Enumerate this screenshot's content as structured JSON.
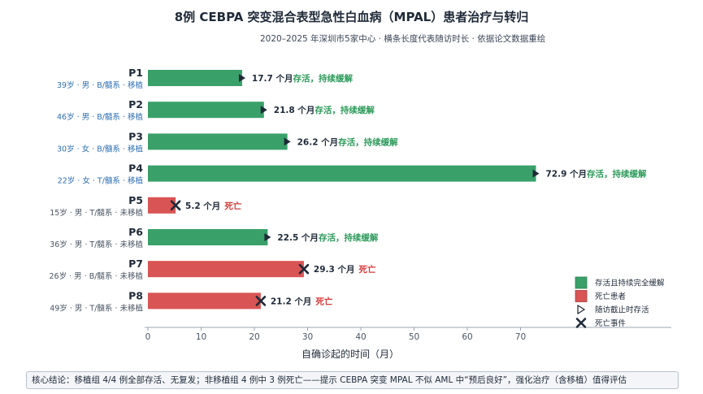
{
  "title": "8例 CEBPA 突变混合表型急性白血病（MPAL）患者治疗与转归",
  "subtitle": "2020–2025 年深圳市5家中心 · 横条长度代表随访时长 · 依据论文数据重绘",
  "footer": "核心结论：移植组 4/4 例全部存活、无复发；非移植组 4 例中 3 例死亡——提示 CEBPA 突变 MPAL 不似 AML 中“预后良好”，强化治疗（含移植）值得评估",
  "colors": {
    "alive": "#3aa06a",
    "dead": "#d95454",
    "alive_text": "#2f9b5c",
    "dead_text": "#d63b3b",
    "sub_blue": "#2f6fb3",
    "sub_gray": "#4a5563",
    "marker": "#1f2a38"
  },
  "chart_data": {
    "type": "bar",
    "orientation": "horizontal",
    "xlabel": "自确诊起的时间（月）",
    "xlim": [
      0,
      78
    ],
    "xticks": [
      0,
      10,
      20,
      30,
      40,
      50,
      60,
      70
    ],
    "unit": "个月",
    "patients": [
      {
        "id": "P1",
        "info": "39岁 · 男 · B/髓系 · 移植",
        "months": 17.7,
        "value_label": "17.7 个月",
        "status": "alive",
        "status_text": "存活，持续缓解"
      },
      {
        "id": "P2",
        "info": "46岁 · 男 · B/髓系 · 移植",
        "months": 21.8,
        "value_label": "21.8 个月",
        "status": "alive",
        "status_text": "存活，持续缓解"
      },
      {
        "id": "P3",
        "info": "30岁 · 女 · B/髓系 · 移植",
        "months": 26.2,
        "value_label": "26.2 个月",
        "status": "alive",
        "status_text": "存活，持续缓解"
      },
      {
        "id": "P4",
        "info": "22岁 · 女 · T/髓系 · 移植",
        "months": 72.9,
        "value_label": "72.9 个月",
        "status": "alive",
        "status_text": "存活，持续缓解"
      },
      {
        "id": "P5",
        "info": "15岁 · 男 · T/髓系 · 未移植",
        "months": 5.2,
        "value_label": "5.2 个月",
        "status": "dead",
        "status_text": "死亡"
      },
      {
        "id": "P6",
        "info": "36岁 · 男 · T/髓系 · 未移植",
        "months": 22.5,
        "value_label": "22.5 个月",
        "status": "alive",
        "status_text": "存活，持续缓解"
      },
      {
        "id": "P7",
        "info": "26岁 · 男 · B/髓系 · 未移植",
        "months": 29.3,
        "value_label": "29.3 个月",
        "status": "dead",
        "status_text": "死亡"
      },
      {
        "id": "P8",
        "info": "49岁 · 男 · T/髓系 · 未移植",
        "months": 21.2,
        "value_label": "21.2 个月",
        "status": "dead",
        "status_text": "死亡"
      }
    ],
    "legend": {
      "placement": "bottom-right",
      "items": [
        {
          "key": "alive",
          "label": "存活且持续完全缓解"
        },
        {
          "key": "dead",
          "label": "死亡患者"
        },
        {
          "key": "censor",
          "label": "随访截止时存活"
        },
        {
          "key": "event",
          "label": "死亡事件"
        }
      ]
    }
  }
}
